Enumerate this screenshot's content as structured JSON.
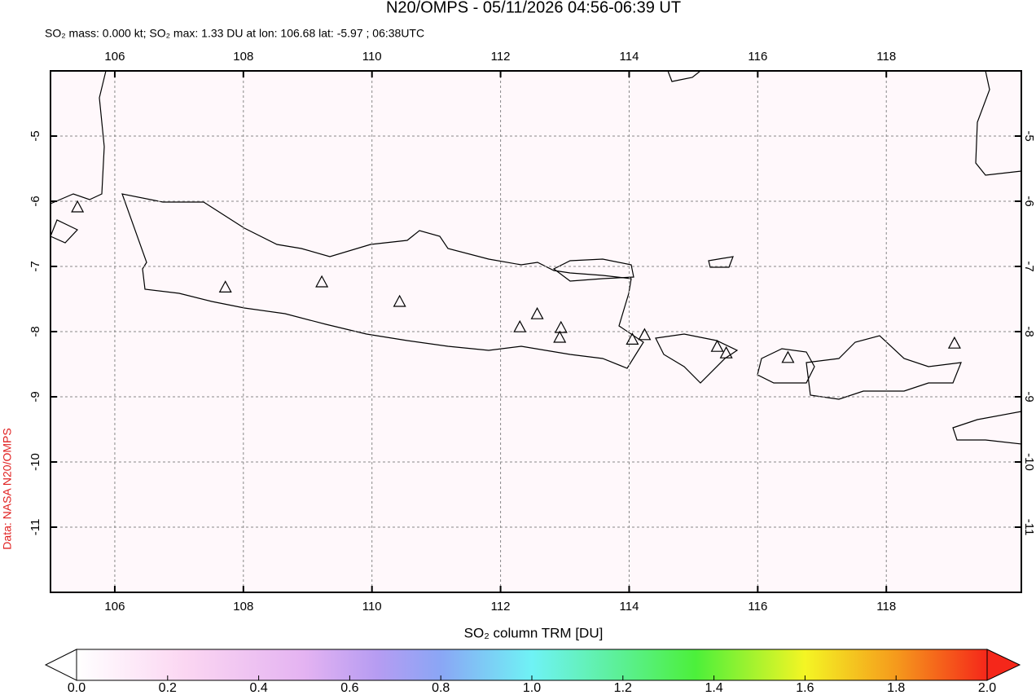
{
  "chart_data": {
    "type": "map",
    "title": "N20/OMPS - 05/11/2026 04:56-06:39 UT",
    "subtitle": "SO₂ mass: 0.000 kt; SO₂ max: 1.33 DU at lon: 106.68 lat: -5.97 ; 06:38UTC",
    "source": "Data: NASA N20/OMPS",
    "xlim": [
      105,
      120.1
    ],
    "ylim": [
      -12,
      -4
    ],
    "xticks": [
      106,
      108,
      110,
      112,
      114,
      116,
      118
    ],
    "yticks": [
      -5,
      -6,
      -7,
      -8,
      -9,
      -10,
      -11
    ],
    "grid": true,
    "volcanoes": {
      "lon": [
        105.42,
        107.72,
        109.22,
        110.43,
        112.3,
        112.57,
        112.94,
        112.92,
        114.05,
        114.24,
        115.37,
        115.51,
        116.47,
        119.06
      ],
      "lat": [
        -6.1,
        -7.33,
        -7.25,
        -7.55,
        -7.94,
        -7.74,
        -7.95,
        -8.1,
        -8.13,
        -8.06,
        -8.24,
        -8.34,
        -8.41,
        -8.19
      ],
      "color": "#000000"
    },
    "colorbar": {
      "label": "SO₂ column TRM [DU]",
      "lim": [
        0,
        2
      ],
      "ticks": [
        {
          "value": 0,
          "label": "0.0"
        },
        {
          "value": 0.2,
          "label": "0.2"
        },
        {
          "value": 0.4,
          "label": "0.4"
        },
        {
          "value": 0.6,
          "label": "0.6"
        },
        {
          "value": 0.8,
          "label": "0.8"
        },
        {
          "value": 1,
          "label": "1.0"
        },
        {
          "value": 1.2,
          "label": "1.2"
        },
        {
          "value": 1.4,
          "label": "1.4"
        },
        {
          "value": 1.6,
          "label": "1.6"
        },
        {
          "value": 1.8,
          "label": "1.8"
        },
        {
          "value": 2,
          "label": "2.0"
        }
      ]
    }
  }
}
